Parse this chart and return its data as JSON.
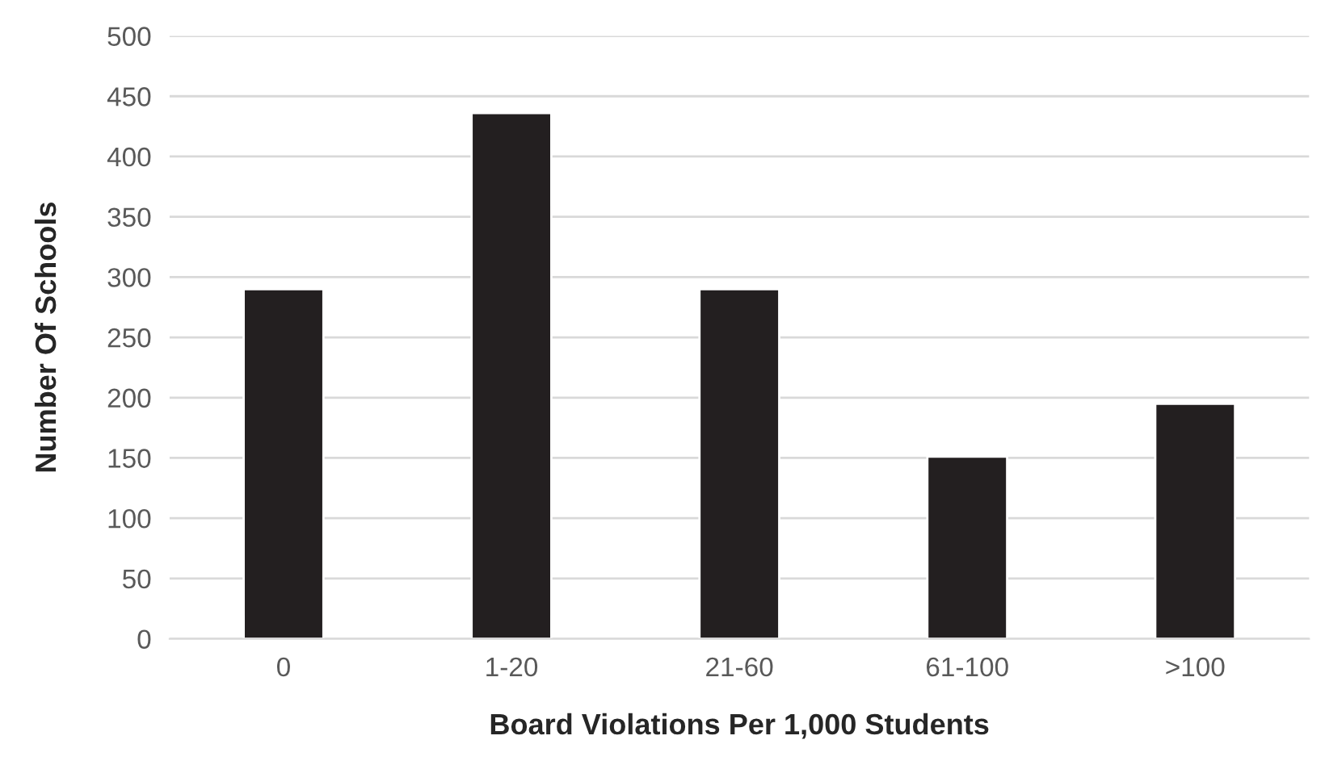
{
  "chart_data": {
    "type": "bar",
    "xlabel": "Board Violations Per 1,000 Students",
    "ylabel": "Number Of Schools",
    "categories": [
      "0",
      "1-20",
      "21-60",
      "61-100",
      ">100"
    ],
    "values": [
      290,
      436,
      290,
      151,
      195
    ],
    "color": "#231f20",
    "ylim": [
      0,
      500
    ],
    "yticks": [
      0,
      50,
      100,
      150,
      200,
      250,
      300,
      350,
      400,
      450,
      500
    ],
    "grid": "y",
    "legend": false
  }
}
